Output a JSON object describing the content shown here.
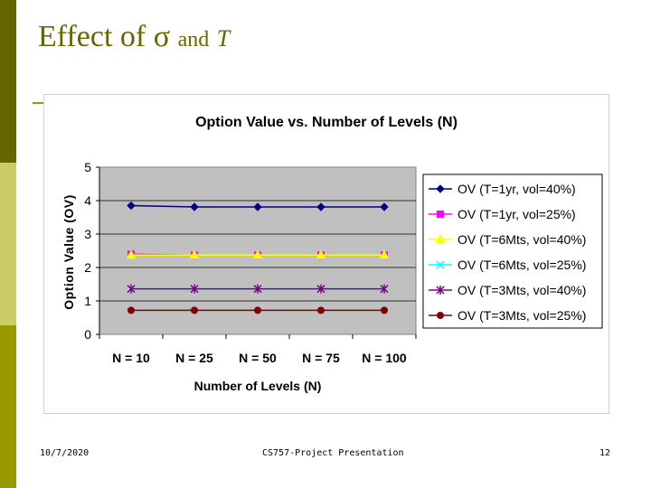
{
  "slide": {
    "title_text": "Effect of",
    "title_sigma": "σ",
    "title_and": "and",
    "title_T": "T",
    "footer_date": "10/7/2020",
    "footer_center": "CS757-Project Presentation",
    "footer_page": "12"
  },
  "colors": {
    "bar_dark": "#666600",
    "bar_light": "#cccc66",
    "bar_mid": "#999900",
    "plot_bg": "#c0c0c0"
  },
  "chart_data": {
    "type": "line",
    "title": "Option Value vs. Number of Levels (N)",
    "xlabel": "Number of Levels (N)",
    "ylabel": "Option Value (OV)",
    "categories": [
      "N = 10",
      "N = 25",
      "N = 50",
      "N = 75",
      "N = 100"
    ],
    "ylim": [
      0,
      5
    ],
    "yticks": [
      0,
      1,
      2,
      3,
      4,
      5
    ],
    "grid": true,
    "legend_position": "right",
    "series": [
      {
        "name": "OV (T=1yr, vol=40%)",
        "values": [
          3.85,
          3.81,
          3.81,
          3.81,
          3.81
        ],
        "color": "#000080",
        "marker": "diamond"
      },
      {
        "name": "OV (T=1yr, vol=25%)",
        "values": [
          2.4,
          2.37,
          2.37,
          2.37,
          2.37
        ],
        "color": "#ff00ff",
        "marker": "square"
      },
      {
        "name": "OV (T=6Mts, vol=40%)",
        "values": [
          2.37,
          2.37,
          2.37,
          2.37,
          2.37
        ],
        "color": "#ffff00",
        "marker": "triangle"
      },
      {
        "name": "OV (T=6Mts, vol=25%)",
        "values": [
          1.36,
          1.36,
          1.36,
          1.36,
          1.36
        ],
        "color": "#00ffff",
        "marker": "x"
      },
      {
        "name": "OV (T=3Mts, vol=40%)",
        "values": [
          1.36,
          1.36,
          1.36,
          1.36,
          1.36
        ],
        "color": "#800080",
        "marker": "star"
      },
      {
        "name": "OV (T=3Mts, vol=25%)",
        "values": [
          0.72,
          0.72,
          0.72,
          0.72,
          0.72
        ],
        "color": "#800000",
        "marker": "circle"
      }
    ]
  }
}
